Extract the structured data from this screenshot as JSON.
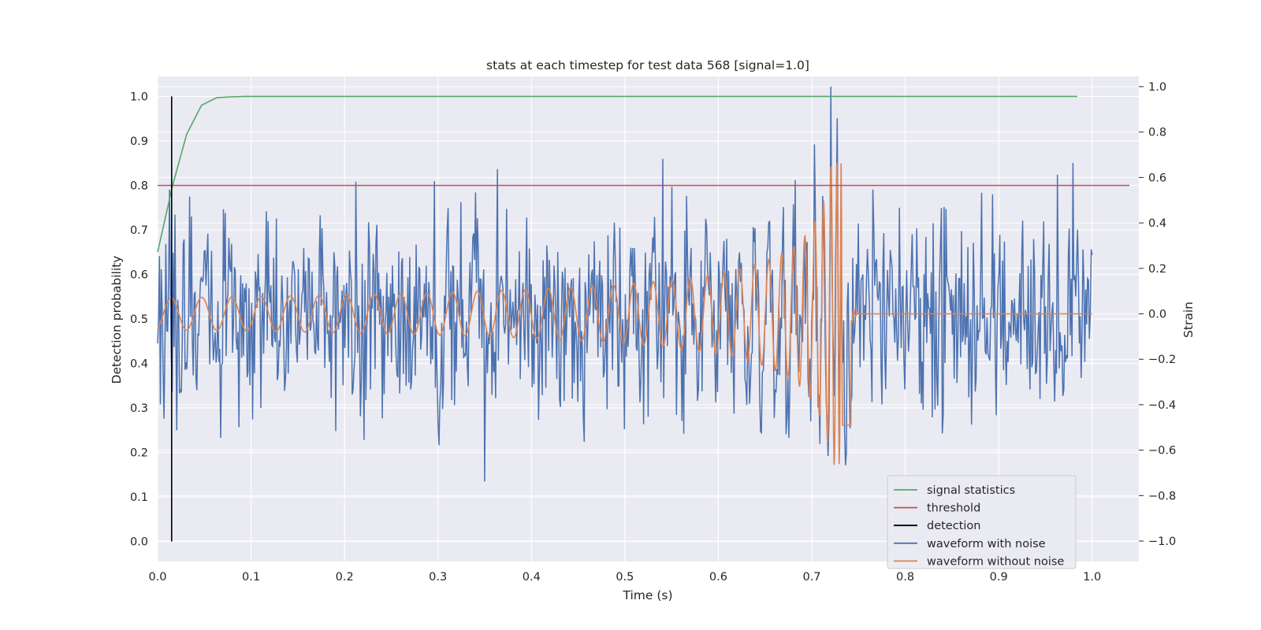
{
  "chart_data": {
    "type": "line",
    "title": "stats at each timestep for test data 568 [signal=1.0]",
    "xlabel": "Time (s)",
    "ylabel": "Detection probability",
    "y2label": "Strain",
    "xlim": [
      0.0,
      1.05
    ],
    "ylim": [
      -0.045,
      1.045
    ],
    "y2lim": [
      -1.09,
      1.045
    ],
    "xticks": [
      "0.0",
      "0.1",
      "0.2",
      "0.3",
      "0.4",
      "0.5",
      "0.6",
      "0.7",
      "0.8",
      "0.9",
      "1.0"
    ],
    "yticks": [
      "0.0",
      "0.1",
      "0.2",
      "0.3",
      "0.4",
      "0.5",
      "0.6",
      "0.7",
      "0.8",
      "0.9",
      "1.0"
    ],
    "y2ticks": [
      "−1.0",
      "−0.8",
      "−0.6",
      "−0.4",
      "−0.2",
      "0.0",
      "0.2",
      "0.4",
      "0.6",
      "0.8",
      "1.0"
    ],
    "grid": true,
    "legend_position": "lower-right",
    "colors": {
      "background": "#eaeaf2",
      "grid": "#ffffff",
      "signal": "#55a868",
      "threshold": "#c44e52",
      "detection": "#000000",
      "noisy": "#4c72b0",
      "clean": "#dd8452"
    },
    "series": [
      {
        "name": "signal statistics",
        "axis": "left",
        "x": [
          0.0,
          0.016,
          0.031,
          0.047,
          0.063,
          0.078,
          0.094,
          0.11,
          0.2,
          0.4,
          0.6,
          0.8,
          0.984
        ],
        "y": [
          0.65,
          0.8,
          0.915,
          0.98,
          0.997,
          0.999,
          1.0,
          1.0,
          1.0,
          1.0,
          1.0,
          1.0,
          1.0
        ]
      },
      {
        "name": "threshold",
        "axis": "left",
        "x": [
          0.0,
          1.04
        ],
        "y": [
          0.8,
          0.8
        ]
      },
      {
        "name": "detection",
        "axis": "left",
        "x": [
          0.015,
          0.015
        ],
        "y": [
          0.0,
          1.0
        ]
      },
      {
        "name": "waveform with noise",
        "axis": "right",
        "x_range": [
          0.0,
          1.0
        ],
        "n_points": 1024,
        "amplitude_range": [
          -1.0,
          1.0
        ],
        "note_visible": "noisy strain samples spanning roughly -1.0 to 1.0"
      },
      {
        "name": "waveform without noise",
        "axis": "right",
        "x_range": [
          0.0,
          1.0
        ],
        "chirp_peak_time": 0.73,
        "peak_amplitude": 0.67,
        "min_amplitude": -0.74,
        "initial_amplitude": 0.07,
        "initial_frequency_hz": 30
      }
    ]
  }
}
